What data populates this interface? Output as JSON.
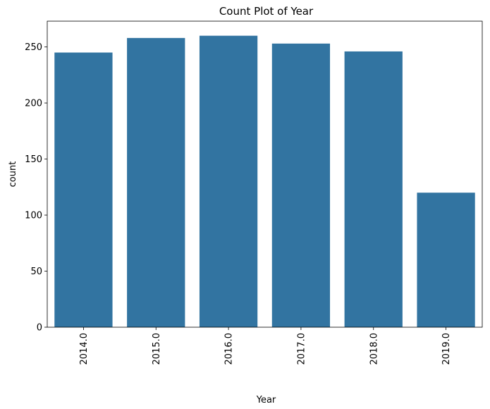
{
  "chart_data": {
    "type": "bar",
    "title": "Count Plot of Year",
    "xlabel": "Year",
    "ylabel": "count",
    "categories": [
      "2014.0",
      "2015.0",
      "2016.0",
      "2017.0",
      "2018.0",
      "2019.0"
    ],
    "values": [
      245,
      258,
      260,
      253,
      246,
      120
    ],
    "ylim": [
      0,
      273
    ],
    "yticks": [
      0,
      50,
      100,
      150,
      200,
      250
    ],
    "bar_color": "#3274a1",
    "grid": false,
    "x_tick_rotation": "vertical"
  }
}
